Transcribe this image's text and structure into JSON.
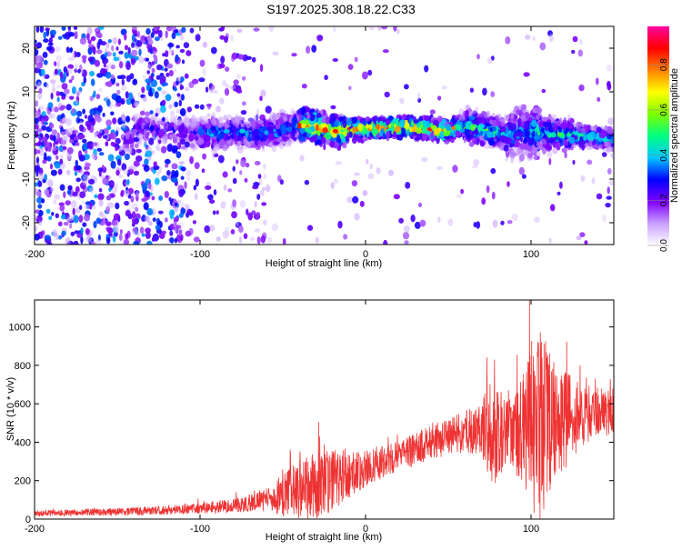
{
  "title": "S197.2025.308.18.22.C33",
  "chart_data": [
    {
      "type": "heatmap",
      "title": "S197.2025.308.18.22.C33",
      "xlabel": "Height of straight line (km)",
      "ylabel": "Frequency (Hz)",
      "xlim": [
        -200,
        150
      ],
      "ylim": [
        -25,
        25
      ],
      "xticks": [
        -200,
        -100,
        0,
        100
      ],
      "yticks": [
        -20,
        -10,
        0,
        10,
        20
      ],
      "colorbar": {
        "label": "Normalized spectral amplitude",
        "range": [
          0,
          0.97
        ],
        "ticks": [
          0,
          0.2,
          0.4,
          0.6,
          0.8
        ],
        "tick_labels": [
          "0.0",
          "0.2",
          "0.4",
          "0.6",
          "0.8"
        ],
        "colormap": [
          "#ffffff",
          "#c8a0ff",
          "#7f00ff",
          "#0000ff",
          "#00c8ff",
          "#00ff80",
          "#80ff00",
          "#ffff00",
          "#ff8000",
          "#ff0000",
          "#ff00a0"
        ]
      },
      "ridge_center": [
        {
          "x": -140,
          "y": 2.0
        },
        {
          "x": -100,
          "y": 0.5
        },
        {
          "x": -60,
          "y": 0.5
        },
        {
          "x": -35,
          "y": 2.5
        },
        {
          "x": -20,
          "y": 1.0
        },
        {
          "x": 0,
          "y": 1.5
        },
        {
          "x": 25,
          "y": 2.0
        },
        {
          "x": 50,
          "y": 1.0
        },
        {
          "x": 58,
          "y": 2.5
        },
        {
          "x": 70,
          "y": 1.5
        },
        {
          "x": 85,
          "y": 0.0
        },
        {
          "x": 95,
          "y": 1.0
        },
        {
          "x": 110,
          "y": 0.5
        },
        {
          "x": 130,
          "y": 0.0
        },
        {
          "x": 150,
          "y": -1.0
        }
      ]
    },
    {
      "type": "line",
      "xlabel": "Height of straight line (km)",
      "ylabel": "SNR (10 * v/v)",
      "xlim": [
        -200,
        150
      ],
      "ylim": [
        0,
        1140
      ],
      "xticks": [
        -200,
        -100,
        0,
        100
      ],
      "yticks": [
        0,
        200,
        400,
        600,
        800,
        1000
      ],
      "series": [
        {
          "name": "SNR",
          "color": "#ee3333",
          "envelope": [
            {
              "x": -200,
              "mean": 30,
              "spread": 15
            },
            {
              "x": -150,
              "mean": 38,
              "spread": 20
            },
            {
              "x": -110,
              "mean": 50,
              "spread": 25
            },
            {
              "x": -80,
              "mean": 70,
              "spread": 35
            },
            {
              "x": -60,
              "mean": 100,
              "spread": 60
            },
            {
              "x": -45,
              "mean": 140,
              "spread": 140
            },
            {
              "x": -30,
              "mean": 180,
              "spread": 180
            },
            {
              "x": -15,
              "mean": 210,
              "spread": 150
            },
            {
              "x": 0,
              "mean": 260,
              "spread": 90
            },
            {
              "x": 20,
              "mean": 330,
              "spread": 80
            },
            {
              "x": 40,
              "mean": 400,
              "spread": 90
            },
            {
              "x": 60,
              "mean": 450,
              "spread": 110
            },
            {
              "x": 70,
              "mean": 470,
              "spread": 140
            },
            {
              "x": 75,
              "mean": 440,
              "spread": 300
            },
            {
              "x": 85,
              "mean": 460,
              "spread": 200
            },
            {
              "x": 95,
              "mean": 480,
              "spread": 280
            },
            {
              "x": 105,
              "mean": 470,
              "spread": 520
            },
            {
              "x": 115,
              "mean": 500,
              "spread": 320
            },
            {
              "x": 130,
              "mean": 540,
              "spread": 160
            },
            {
              "x": 150,
              "mean": 560,
              "spread": 120
            }
          ]
        }
      ]
    }
  ]
}
